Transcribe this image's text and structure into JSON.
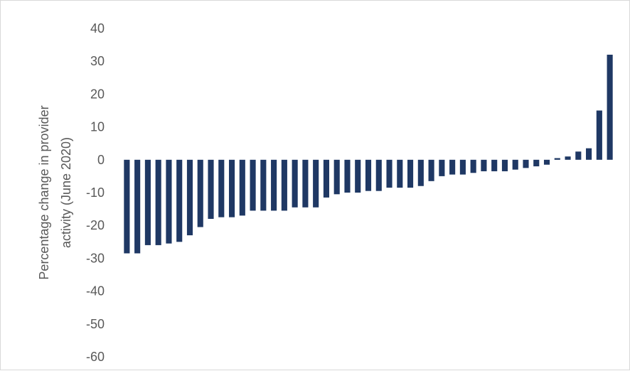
{
  "chart_data": {
    "type": "bar",
    "title": "",
    "xlabel": "",
    "ylabel": "Percentage change in provider activity (June 2020)",
    "ylabel_lines": [
      "Percentage change in provider",
      "activity (June 2020)"
    ],
    "ylim": [
      -60,
      40
    ],
    "yticks": [
      40,
      30,
      20,
      10,
      0,
      -10,
      -20,
      -30,
      -40,
      -50,
      -60
    ],
    "grid": false,
    "legend": "none",
    "bar_color": "#1f3864",
    "values": [
      -28.5,
      -28.5,
      -26,
      -26,
      -25.5,
      -25,
      -23,
      -20.5,
      -18,
      -17.5,
      -17.5,
      -17,
      -15.5,
      -15.5,
      -15.5,
      -15.5,
      -14.5,
      -14.5,
      -14.5,
      -11.5,
      -10.5,
      -10,
      -10,
      -9.5,
      -9.5,
      -8.5,
      -8.5,
      -8.5,
      -8,
      -6.5,
      -5,
      -4.5,
      -4.5,
      -4,
      -3.5,
      -3.5,
      -3.5,
      -3,
      -2.5,
      -2,
      -1.5,
      0.5,
      1,
      2.5,
      3.5,
      15,
      32
    ]
  }
}
